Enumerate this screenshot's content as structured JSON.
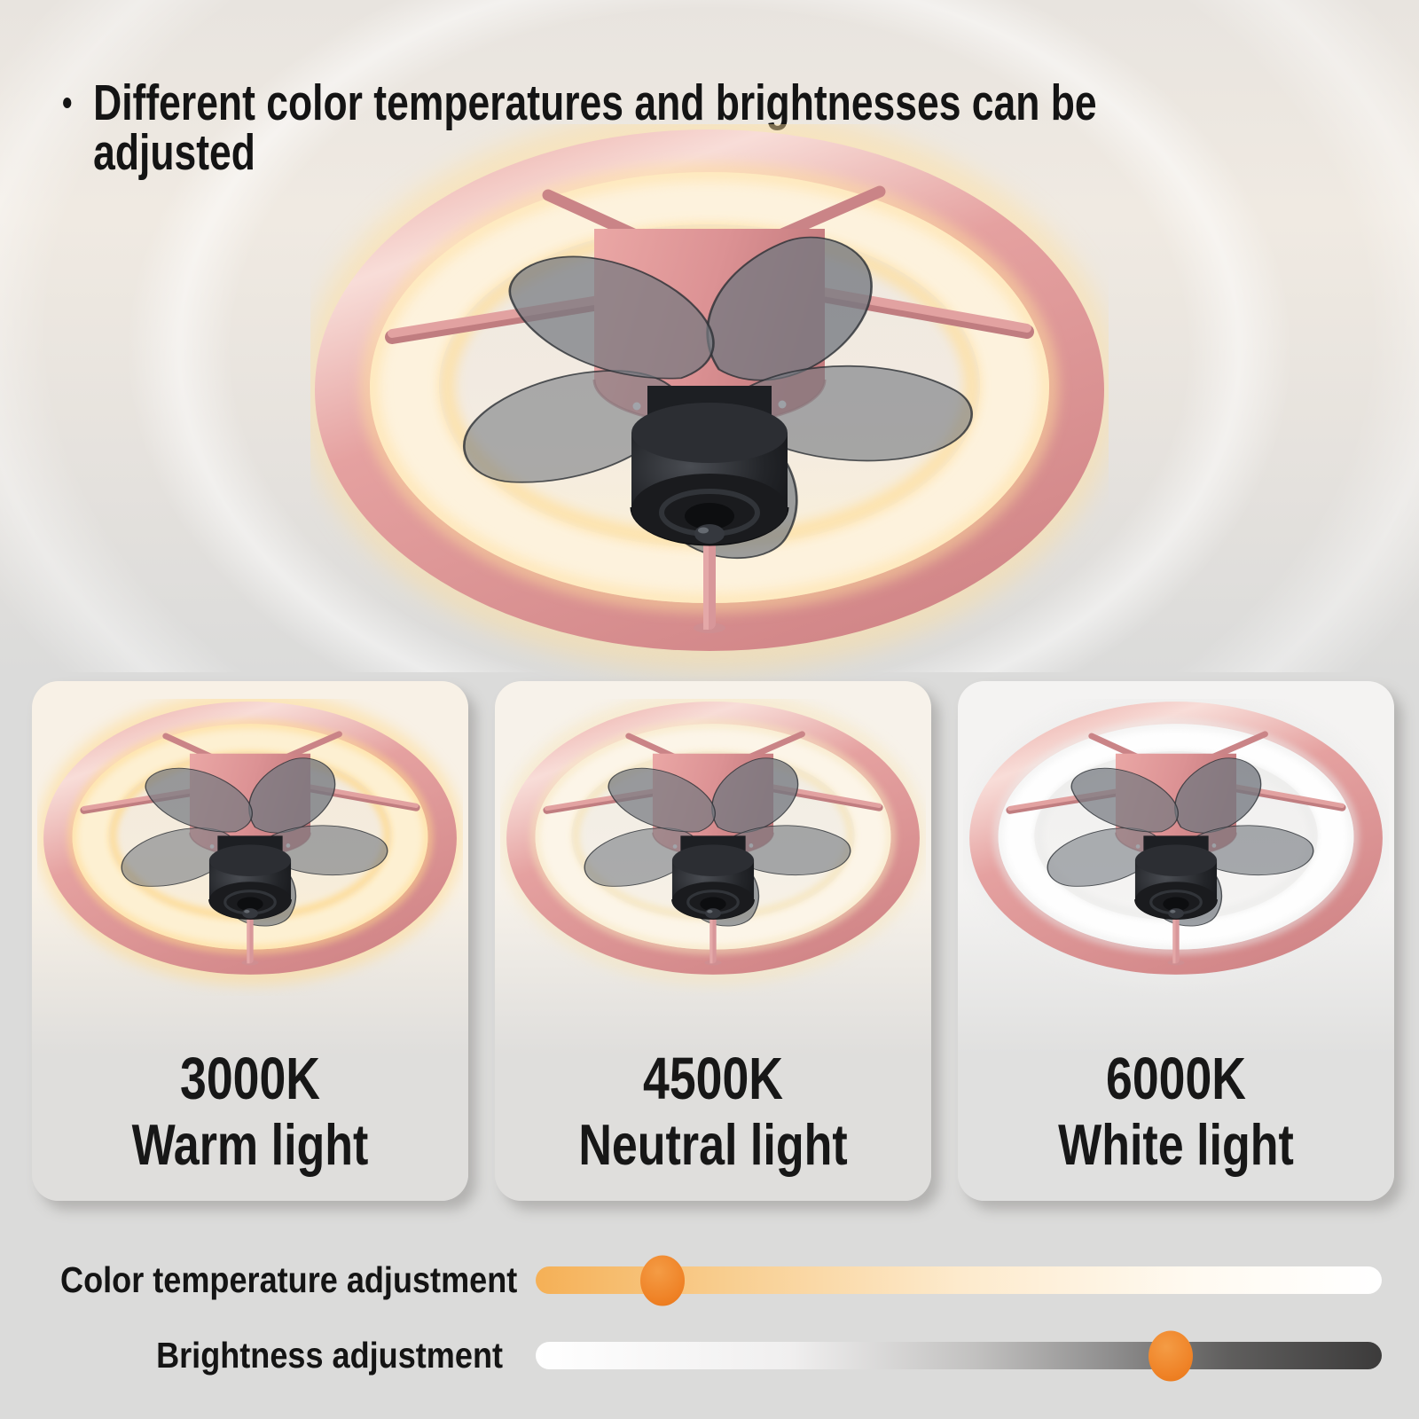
{
  "header": {
    "bullet": "•",
    "title": "Different color temperatures and brightnesses can be adjusted"
  },
  "colors": {
    "page_background": "#dbdbda",
    "accent_orange": "#ef8226",
    "fan_pink": "#e0999a",
    "text": "#141414"
  },
  "hero_fan": {
    "colors": {
      "glow": "#ffdf9d",
      "band": "#fdf2dd",
      "interior_top": "#eee8e0",
      "interior_mid": "#f3ebe1",
      "interior_bottom": "#f9efda"
    }
  },
  "cards": [
    {
      "temperature": "3000K",
      "light_type": "Warm light",
      "colors": {
        "glow": "#ffd98c",
        "band": "#fdf0d2",
        "interior_top": "#f2e9dc",
        "interior_mid": "#f5ecdd",
        "interior_bottom": "#f9eed7",
        "card_top": "#f8f1e6",
        "card_bottom": "#dfdedc"
      }
    },
    {
      "temperature": "4500K",
      "light_type": "Neutral light",
      "colors": {
        "glow": "#f7e5bb",
        "band": "#fcf5e8",
        "interior_top": "#f1ece3",
        "interior_mid": "#f4efe6",
        "interior_bottom": "#f7f1e6",
        "card_top": "#f7f2ea",
        "card_bottom": "#dfdedc"
      }
    },
    {
      "temperature": "6000K",
      "light_type": "White light",
      "colors": {
        "glow": "#ececeb",
        "band": "#fefefe",
        "interior_top": "#f0efee",
        "interior_mid": "#f3f2f1",
        "interior_bottom": "#f5f4f3",
        "card_top": "#f4f3f2",
        "card_bottom": "#e0e0df"
      }
    }
  ],
  "sliders": [
    {
      "label": "Color temperature adjustment",
      "value_percent": 15,
      "thumb_color": "#ef8226",
      "track_stops": [
        [
          "#f5b056",
          0
        ],
        [
          "#f8cd8e",
          22
        ],
        [
          "#fdeacc",
          50
        ],
        [
          "#fffaf1",
          78
        ],
        [
          "#ffffff",
          100
        ]
      ]
    },
    {
      "label": "Brightness adjustment",
      "value_percent": 75,
      "thumb_color": "#ef8226",
      "track_stops": [
        [
          "#ffffff",
          0
        ],
        [
          "#f0efef",
          30
        ],
        [
          "#c2c1c0",
          52
        ],
        [
          "#8f8e8e",
          68
        ],
        [
          "#5f5e5d",
          82
        ],
        [
          "#3c3b3b",
          100
        ]
      ]
    }
  ]
}
